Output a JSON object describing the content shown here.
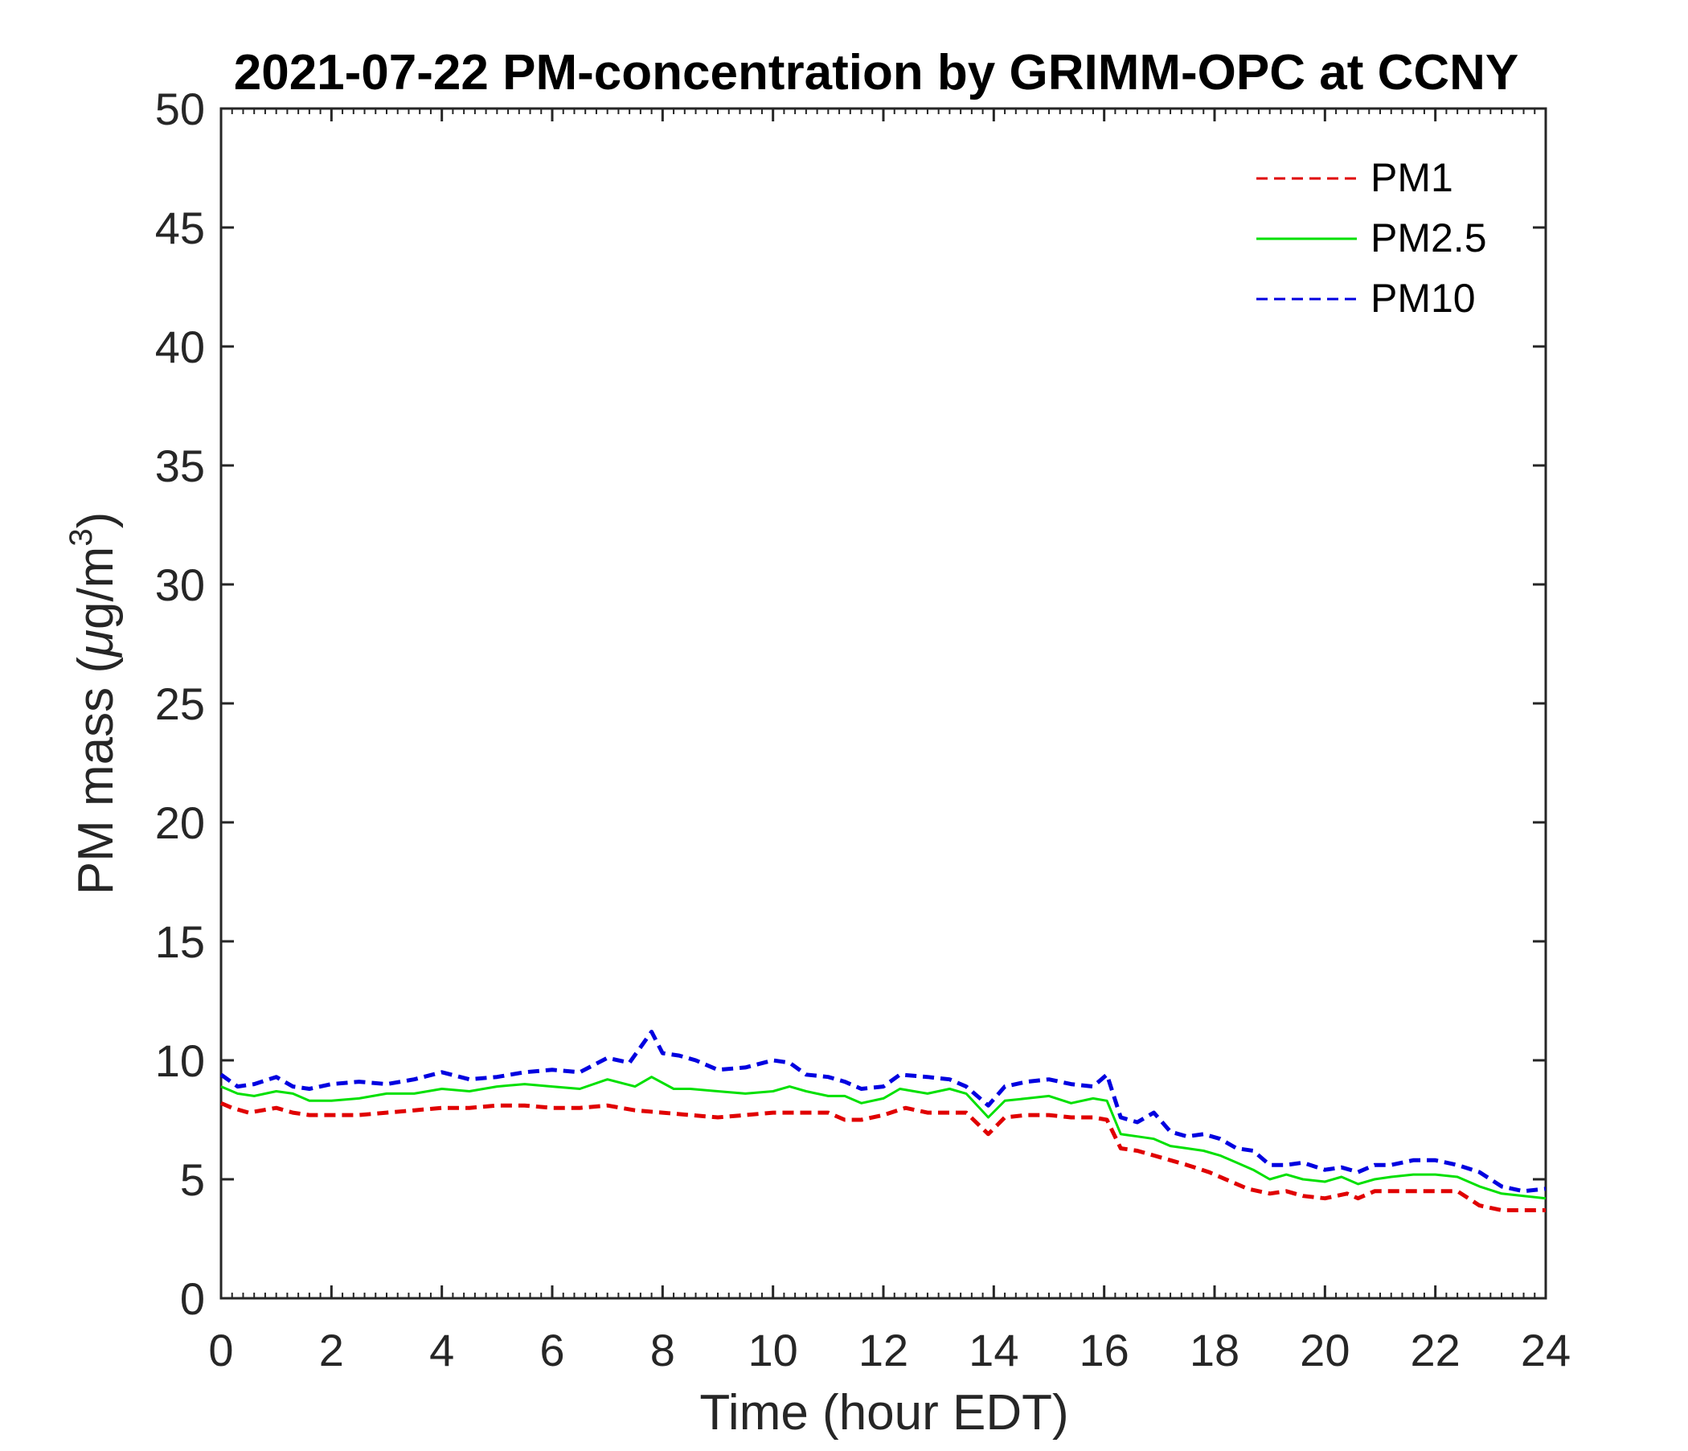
{
  "chart_data": {
    "type": "line",
    "title": "2021-07-22 PM-concentration by GRIMM-OPC at CCNY",
    "xlabel": "Time (hour EDT)",
    "ylabel_main": "PM mass (",
    "ylabel_mu": "μ",
    "ylabel_unit": "g/m",
    "ylabel_sup": "3",
    "ylabel_close": ")",
    "xlim": [
      0,
      24
    ],
    "ylim": [
      0,
      50
    ],
    "x_ticks": [
      0,
      2,
      4,
      6,
      8,
      10,
      12,
      14,
      16,
      18,
      20,
      22,
      24
    ],
    "y_ticks": [
      0,
      5,
      10,
      15,
      20,
      25,
      30,
      35,
      40,
      45,
      50
    ],
    "x_minor_step": 0.2,
    "grid": false,
    "legend_position": "top-right",
    "series": [
      {
        "name": "PM1",
        "color": "#e00000",
        "dash": "dashed",
        "x": [
          0,
          0.2,
          0.5,
          1,
          1.3,
          1.6,
          2,
          2.5,
          3,
          3.5,
          4,
          4.5,
          5,
          5.5,
          6,
          6.5,
          7,
          7.5,
          8,
          8.5,
          9,
          9.5,
          10,
          10.5,
          11,
          11.3,
          11.6,
          12,
          12.4,
          12.8,
          13.2,
          13.5,
          13.9,
          14.2,
          14.6,
          15,
          15.4,
          15.8,
          16.05,
          16.3,
          16.6,
          16.9,
          17.2,
          17.5,
          17.9,
          18.6,
          19,
          19.3,
          19.6,
          20,
          20.4,
          20.6,
          20.9,
          21.2,
          21.6,
          22,
          22.4,
          22.6,
          22.8,
          23.2,
          23.6,
          24
        ],
        "y": [
          8.2,
          8.0,
          7.8,
          8.0,
          7.8,
          7.7,
          7.7,
          7.7,
          7.8,
          7.9,
          8.0,
          8.0,
          8.1,
          8.1,
          8.0,
          8.0,
          8.1,
          7.9,
          7.8,
          7.7,
          7.6,
          7.7,
          7.8,
          7.8,
          7.8,
          7.5,
          7.5,
          7.7,
          8.0,
          7.8,
          7.8,
          7.8,
          6.9,
          7.6,
          7.7,
          7.7,
          7.6,
          7.6,
          7.5,
          6.3,
          6.2,
          6.0,
          5.8,
          5.6,
          5.3,
          4.6,
          4.4,
          4.5,
          4.3,
          4.2,
          4.4,
          4.2,
          4.5,
          4.5,
          4.5,
          4.5,
          4.5,
          4.2,
          3.9,
          3.7,
          3.7,
          3.7
        ]
      },
      {
        "name": "PM2.5",
        "color": "#00e000",
        "dash": "solid",
        "x": [
          0,
          0.3,
          0.6,
          1,
          1.3,
          1.6,
          2,
          2.5,
          3,
          3.5,
          4,
          4.5,
          5,
          5.5,
          6,
          6.5,
          7,
          7.5,
          7.8,
          8.2,
          8.5,
          9,
          9.5,
          10,
          10.3,
          10.6,
          11,
          11.3,
          11.6,
          12,
          12.3,
          12.8,
          13.2,
          13.5,
          13.9,
          14.2,
          14.6,
          15,
          15.4,
          15.8,
          16.05,
          16.3,
          16.6,
          16.9,
          17.2,
          17.5,
          17.8,
          18.1,
          18.4,
          18.7,
          19,
          19.3,
          19.6,
          20,
          20.3,
          20.6,
          20.9,
          21.2,
          21.6,
          22,
          22.4,
          22.8,
          23.2,
          23.6,
          24
        ],
        "y": [
          8.9,
          8.6,
          8.5,
          8.7,
          8.6,
          8.3,
          8.3,
          8.4,
          8.6,
          8.6,
          8.8,
          8.7,
          8.9,
          9.0,
          8.9,
          8.8,
          9.2,
          8.9,
          9.3,
          8.8,
          8.8,
          8.7,
          8.6,
          8.7,
          8.9,
          8.7,
          8.5,
          8.5,
          8.2,
          8.4,
          8.8,
          8.6,
          8.8,
          8.6,
          7.6,
          8.3,
          8.4,
          8.5,
          8.2,
          8.4,
          8.3,
          6.9,
          6.8,
          6.7,
          6.4,
          6.3,
          6.2,
          6.0,
          5.7,
          5.4,
          5.0,
          5.2,
          5.0,
          4.9,
          5.1,
          4.8,
          5.0,
          5.1,
          5.2,
          5.2,
          5.1,
          4.7,
          4.4,
          4.3,
          4.2
        ]
      },
      {
        "name": "PM10",
        "color": "#0000e0",
        "dash": "dashed",
        "x": [
          0,
          0.3,
          0.6,
          1,
          1.3,
          1.6,
          2,
          2.5,
          3,
          3.5,
          4,
          4.5,
          5,
          5.5,
          6,
          6.5,
          7,
          7.4,
          7.8,
          8.0,
          8.3,
          8.6,
          9,
          9.5,
          10,
          10.3,
          10.6,
          11,
          11.3,
          11.6,
          12,
          12.3,
          12.8,
          13.2,
          13.5,
          13.9,
          14.2,
          14.6,
          15,
          15.4,
          15.8,
          16.05,
          16.3,
          16.6,
          16.9,
          17.2,
          17.5,
          17.8,
          18.1,
          18.4,
          18.7,
          19,
          19.3,
          19.6,
          20,
          20.3,
          20.6,
          20.9,
          21.2,
          21.6,
          22,
          22.4,
          22.8,
          23.2,
          23.6,
          24
        ],
        "y": [
          9.4,
          8.9,
          9.0,
          9.3,
          8.9,
          8.8,
          9.0,
          9.1,
          9.0,
          9.2,
          9.5,
          9.2,
          9.3,
          9.5,
          9.6,
          9.5,
          10.1,
          9.9,
          11.2,
          10.3,
          10.2,
          10.0,
          9.6,
          9.7,
          10.0,
          9.9,
          9.4,
          9.3,
          9.1,
          8.8,
          8.9,
          9.4,
          9.3,
          9.2,
          8.9,
          8.1,
          8.9,
          9.1,
          9.2,
          9.0,
          8.9,
          9.4,
          7.6,
          7.4,
          7.8,
          7.0,
          6.8,
          6.9,
          6.7,
          6.3,
          6.2,
          5.6,
          5.6,
          5.7,
          5.4,
          5.5,
          5.3,
          5.6,
          5.6,
          5.8,
          5.8,
          5.6,
          5.3,
          4.7,
          4.5,
          4.6
        ]
      }
    ]
  }
}
